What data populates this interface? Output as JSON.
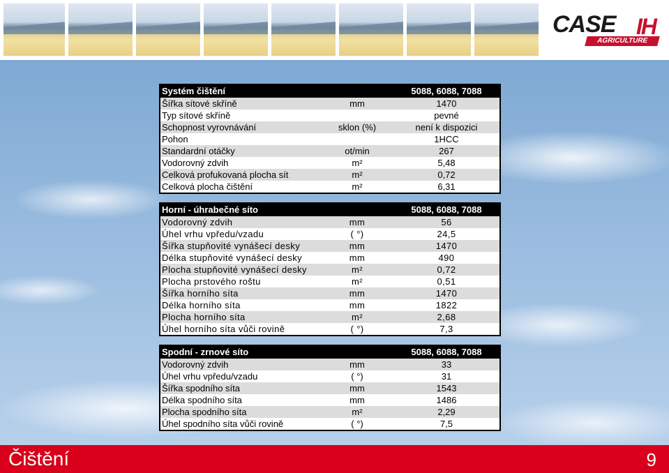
{
  "brand": {
    "logo_text": "CASE",
    "logo_bars": "IH",
    "logo_sub": "AGRICULTURE",
    "accent": "#d8001a"
  },
  "tables": [
    {
      "header": {
        "label": "Systém čištění",
        "models": "5088, 6088, 7088"
      },
      "rows": [
        {
          "label": "Šířka sítové skříně",
          "unit": "mm",
          "value": "1470"
        },
        {
          "label": "Typ sítové skříně",
          "unit": "",
          "value": "pevné"
        },
        {
          "label": "Schopnost vyrovnávání",
          "unit": "sklon (%)",
          "value": "není k dispozici"
        },
        {
          "label": "Pohon",
          "unit": "",
          "value": "1HCC"
        },
        {
          "label": "Standardní otáčky",
          "unit": "ot/min",
          "value": "267"
        },
        {
          "label": "Vodorovný zdvih",
          "unit": "m²",
          "value": "5,48"
        },
        {
          "label": "Celková profukovaná plocha sít",
          "unit": "m²",
          "value": "0,72"
        },
        {
          "label": "Celková plocha čištění",
          "unit": "m²",
          "value": "6,31"
        }
      ]
    },
    {
      "header": {
        "label": "Horní - úhrabečné síto",
        "models": "5088, 6088, 7088"
      },
      "rows": [
        {
          "label": "Vodorovný zdvih",
          "unit": "mm",
          "value": "56"
        },
        {
          "label": "Úhel vrhu vpředu/vzadu",
          "unit": "( °)",
          "value": "24,5"
        },
        {
          "label": "Šířka stupňovité vynášecí desky",
          "unit": "mm",
          "value": "1470"
        },
        {
          "label": "Délka stupňovité vynášecí desky",
          "unit": "mm",
          "value": "490"
        },
        {
          "label": "Plocha stupňovité vynášecí desky",
          "unit": "m²",
          "value": "0,72"
        },
        {
          "label": "Plocha prstového roštu",
          "unit": "m²",
          "value": "0,51"
        },
        {
          "label": "Šířka horního síta",
          "unit": "mm",
          "value": "1470"
        },
        {
          "label": "Délka horního síta",
          "unit": "mm",
          "value": "1822"
        },
        {
          "label": "Plocha horního síta",
          "unit": "m²",
          "value": "2,68"
        },
        {
          "label": "Úhel horního síta vůči rovině",
          "unit": "( °)",
          "value": "7,3"
        }
      ]
    },
    {
      "header": {
        "label": "Spodní - zrnové síto",
        "models": "5088, 6088, 7088"
      },
      "rows": [
        {
          "label": "Vodorovný zdvih",
          "unit": "mm",
          "value": "33"
        },
        {
          "label": "Úhel vrhu vpředu/vzadu",
          "unit": "( °)",
          "value": "31"
        },
        {
          "label": "Šířka spodního síta",
          "unit": "mm",
          "value": "1543"
        },
        {
          "label": "Délka spodního síta",
          "unit": "mm",
          "value": "1486"
        },
        {
          "label": "Plocha spodního síta",
          "unit": "m²",
          "value": "2,29"
        },
        {
          "label": "Úhel spodního síta vůči rovině",
          "unit": "( °)",
          "value": "7,5"
        }
      ]
    }
  ],
  "footer": {
    "title": "Čištění",
    "page": "9"
  }
}
